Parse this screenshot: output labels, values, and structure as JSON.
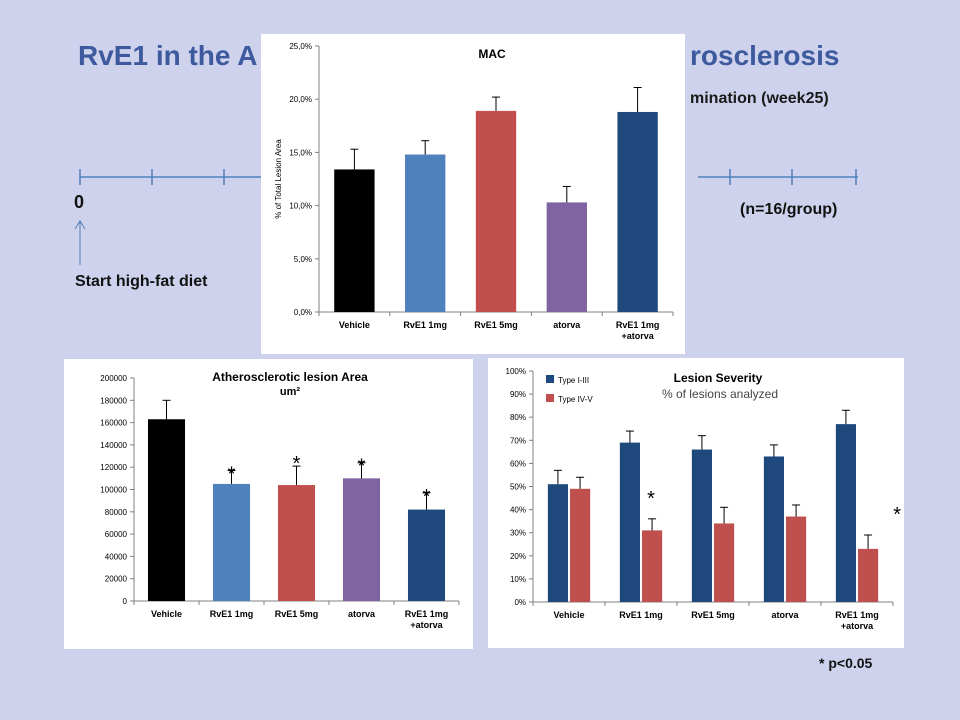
{
  "slide": {
    "title_left": "RvE1 in the A",
    "title_right": "rosclerosis",
    "termination": "mination (week25)",
    "timeline_zero": "0",
    "n_group": "(n=16/group)",
    "start_diet": "Start high-fat diet",
    "pvalue_note": "* p<0.05"
  },
  "colors": {
    "black": "#000000",
    "blue_light": "#4f81bd",
    "red": "#c0504d",
    "purple": "#8064a2",
    "navy": "#1f497d",
    "timeline": "#4f81bd",
    "title": "#3d5a9e",
    "background": "#cfd2ec"
  },
  "chart_data": [
    {
      "id": "mac",
      "type": "bar",
      "title": "MAC",
      "ylabel": "% of Total Lesion Area",
      "ylim": [
        0,
        25
      ],
      "yticks": [
        "0,0%",
        "5,0%",
        "10,0%",
        "15,0%",
        "20,0%",
        "25,0%"
      ],
      "categories": [
        "Vehicle",
        "RvE1 1mg",
        "RvE1 5mg",
        "atorva",
        "RvE1 1mg\n+atorva"
      ],
      "values": [
        13.4,
        14.8,
        18.9,
        10.3,
        18.8
      ],
      "errors": [
        1.9,
        1.3,
        1.3,
        1.5,
        2.3
      ],
      "bar_colors": [
        "black",
        "blue_light",
        "red",
        "purple",
        "navy"
      ],
      "grid": false
    },
    {
      "id": "area",
      "type": "bar",
      "title": "Atherosclerotic lesion Area",
      "subtitle": "um²",
      "ylim": [
        0,
        200000
      ],
      "yticks": [
        "0",
        "20000",
        "40000",
        "60000",
        "80000",
        "100000",
        "120000",
        "140000",
        "160000",
        "180000",
        "200000"
      ],
      "categories": [
        "Vehicle",
        "RvE1 1mg",
        "RvE1 5mg",
        "atorva",
        "RvE1 1mg\n+atorva"
      ],
      "values": [
        163000,
        105000,
        104000,
        110000,
        82000
      ],
      "errors": [
        17000,
        12000,
        17000,
        14000,
        15000
      ],
      "significant": [
        false,
        true,
        true,
        true,
        true
      ],
      "bar_colors": [
        "black",
        "blue_light",
        "red",
        "purple",
        "navy"
      ],
      "grid": false
    },
    {
      "id": "severity",
      "type": "bar",
      "title": "Lesion Severity",
      "subtitle": "% of lesions analyzed",
      "ylim": [
        0,
        100
      ],
      "yticks": [
        "0%",
        "10%",
        "20%",
        "30%",
        "40%",
        "50%",
        "60%",
        "70%",
        "80%",
        "90%",
        "100%"
      ],
      "categories": [
        "Vehicle",
        "RvE1 1mg",
        "RvE1 5mg",
        "atorva",
        "RvE1 1mg\n+atorva"
      ],
      "series": [
        {
          "name": "Type I-III",
          "color": "navy",
          "values": [
            51,
            69,
            66,
            63,
            77
          ],
          "errors": [
            6,
            5,
            6,
            5,
            6
          ]
        },
        {
          "name": "Type IV-V",
          "color": "red",
          "values": [
            49,
            31,
            34,
            37,
            23
          ],
          "errors": [
            5,
            5,
            7,
            5,
            6
          ]
        }
      ],
      "significant": [
        false,
        true,
        false,
        false,
        true
      ],
      "legend": "top-left",
      "grid": false
    }
  ]
}
